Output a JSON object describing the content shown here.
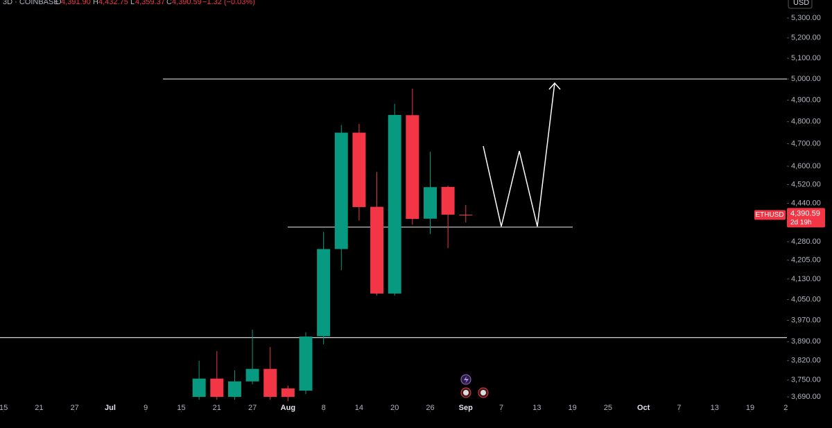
{
  "chart_data": {
    "type": "candlestick",
    "header": {
      "interval": "3D · COINBASE",
      "o": "O",
      "o_value": "4,391.90",
      "h": "H",
      "h_value": "4,432.75",
      "l": "L",
      "l_value": "4,359.37",
      "c": "C",
      "c_value": "4,390.59",
      "change": "−1.32 (−0.03%)"
    },
    "currency": "USD",
    "symbol": "ETHUSD",
    "last_price": 4390.59,
    "last_price_label": "4,390.59",
    "countdown": "2d 19h",
    "log_scale": true,
    "up_color": "#089981",
    "down_color": "#f23645",
    "x": [
      33,
      36,
      39,
      42,
      45,
      48,
      51,
      54,
      57,
      60,
      63,
      66,
      69,
      72,
      75,
      78
    ],
    "open": [
      3690,
      3755,
      3690,
      3745,
      3790,
      3720,
      3712,
      3910,
      4250,
      4750,
      4425,
      4073,
      4830,
      4375,
      4510,
      4391.9
    ],
    "high": [
      3820,
      3855,
      3785,
      3935,
      3870,
      3730,
      3925,
      4320,
      4785,
      4790,
      4575,
      4882,
      4954,
      4664,
      4515,
      4432.75
    ],
    "low": [
      3680,
      3680,
      3680,
      3735,
      3680,
      3675,
      3700,
      3880,
      4165,
      4368,
      4065,
      4065,
      4350,
      4311,
      4254,
      4359.37
    ],
    "close": [
      3755,
      3690,
      3745,
      3790,
      3690,
      3690,
      3909,
      4250,
      4750,
      4424,
      4073,
      4831,
      4374,
      4509,
      4392,
      4390.59
    ],
    "levels": [
      5000,
      3905,
      4340
    ],
    "xlim": [
      -0.6,
      132.2
    ],
    "xticks": [
      {
        "value": 0,
        "label": "15"
      },
      {
        "value": 6,
        "label": "21"
      },
      {
        "value": 12,
        "label": "27"
      },
      {
        "value": 18,
        "label": "Jul"
      },
      {
        "value": 24,
        "label": "9"
      },
      {
        "value": 30,
        "label": "15"
      },
      {
        "value": 36,
        "label": "21"
      },
      {
        "value": 42,
        "label": "27"
      },
      {
        "value": 48,
        "label": "Aug"
      },
      {
        "value": 54,
        "label": "8"
      },
      {
        "value": 60,
        "label": "14"
      },
      {
        "value": 66,
        "label": "20"
      },
      {
        "value": 72,
        "label": "26"
      },
      {
        "value": 78,
        "label": "Sep"
      },
      {
        "value": 84,
        "label": "7"
      },
      {
        "value": 90,
        "label": "13"
      },
      {
        "value": 96,
        "label": "19"
      },
      {
        "value": 102,
        "label": "25"
      },
      {
        "value": 108,
        "label": "Oct"
      },
      {
        "value": 114,
        "label": "7"
      },
      {
        "value": 120,
        "label": "13"
      },
      {
        "value": 126,
        "label": "19"
      },
      {
        "value": 132,
        "label": "2"
      }
    ],
    "ylim": [
      3632,
      5392
    ],
    "yticks": [
      {
        "value": 5300,
        "label": "5,300.00"
      },
      {
        "value": 5200,
        "label": "5,200.00"
      },
      {
        "value": 5100,
        "label": "5,100.00"
      },
      {
        "value": 5000,
        "label": "5,000.00"
      },
      {
        "value": 4900,
        "label": "4,900.00"
      },
      {
        "value": 4800,
        "label": "4,800.00"
      },
      {
        "value": 4700,
        "label": "4,700.00"
      },
      {
        "value": 4600,
        "label": "4,600.00"
      },
      {
        "value": 4520,
        "label": "4,520.00"
      },
      {
        "value": 4440,
        "label": "4,440.00"
      },
      {
        "value": 4280,
        "label": "4,280.00"
      },
      {
        "value": 4205,
        "label": "4,205.00"
      },
      {
        "value": 4130,
        "label": "4,130.00"
      },
      {
        "value": 4050,
        "label": "4,050.00"
      },
      {
        "value": 3970,
        "label": "3,970.00"
      },
      {
        "value": 3890,
        "label": "3,890.00"
      },
      {
        "value": 3820,
        "label": "3,820.00"
      },
      {
        "value": 3750,
        "label": "3,750.00"
      },
      {
        "value": 3690,
        "label": "3,690.00"
      }
    ]
  }
}
